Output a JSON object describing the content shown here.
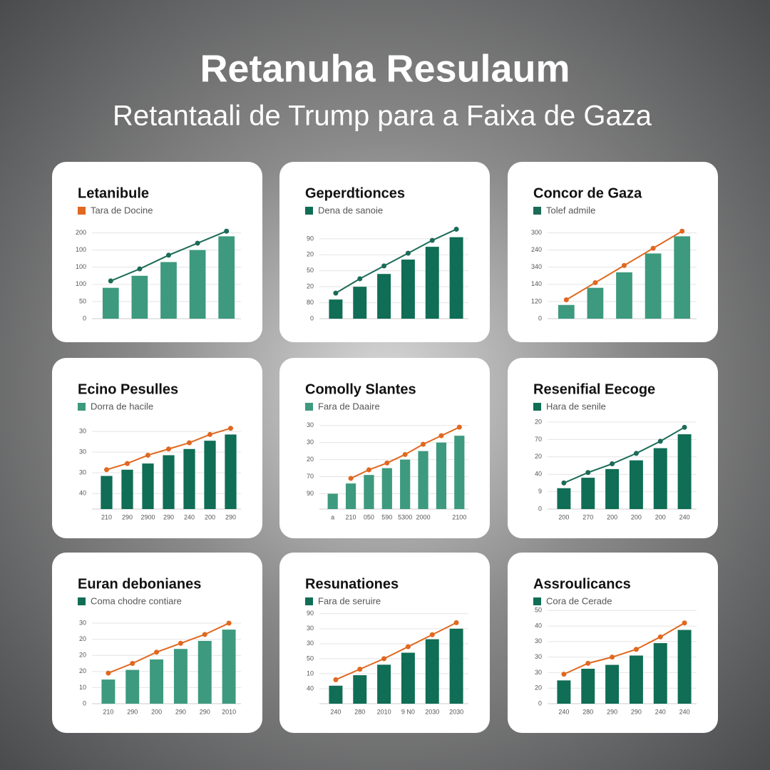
{
  "header": {
    "title": "Retanuha Resulaum",
    "subtitle": "Retantaali de Trump para a Faixa de Gaza"
  },
  "chart_data": [
    {
      "type": "combo",
      "title": "Letanibule",
      "legend_color": "#e0681f",
      "ylim": [
        0,
        5.4
      ],
      "yticks": [
        0,
        {
          "value": 1,
          "label": "50"
        },
        {
          "value": 2,
          "label": "100"
        },
        {
          "value": 3,
          "label": "100"
        },
        {
          "value": 4,
          "label": "100"
        },
        {
          "value": 5,
          "label": "200"
        }
      ],
      "series": [
        {
          "name": "Tara de Docine",
          "kind": "bar",
          "color": "#3d9a7e",
          "values": [
            1.8,
            2.5,
            3.3,
            4.0,
            4.8
          ]
        },
        {
          "kind": "line",
          "color": "#1b6b57",
          "values": [
            2.2,
            2.9,
            3.7,
            4.4,
            5.1
          ]
        }
      ]
    },
    {
      "type": "combo",
      "title": "Geperdtionces",
      "legend_color": "#0f6e55",
      "ylim": [
        0,
        5.8
      ],
      "yticks": [
        0,
        {
          "value": 1,
          "label": "80"
        },
        {
          "value": 2,
          "label": "20"
        },
        {
          "value": 3,
          "label": "50"
        },
        {
          "value": 4,
          "label": "20"
        },
        {
          "value": 5,
          "label": "90"
        }
      ],
      "series": [
        {
          "name": "Dena de sanoie",
          "kind": "bar",
          "color": "#0f6e55",
          "values": [
            1.2,
            2.0,
            2.8,
            3.7,
            4.5,
            5.1
          ]
        },
        {
          "kind": "line",
          "color": "#1b6b57",
          "values": [
            1.6,
            2.5,
            3.3,
            4.1,
            4.9,
            5.6
          ]
        }
      ]
    },
    {
      "type": "combo",
      "title": "Concor de Gaza",
      "legend_color": "#1b6b57",
      "ylim": [
        0,
        5.4
      ],
      "yticks": [
        0,
        {
          "value": 1,
          "label": "120"
        },
        {
          "value": 2,
          "label": "140"
        },
        {
          "value": 3,
          "label": "340"
        },
        {
          "value": 4,
          "label": "240"
        },
        {
          "value": 5,
          "label": "300"
        }
      ],
      "series": [
        {
          "name": "Tolef admile",
          "kind": "bar",
          "color": "#3d9a7e",
          "values": [
            0.8,
            1.8,
            2.7,
            3.8,
            4.8
          ]
        },
        {
          "kind": "line",
          "color": "#e0681f",
          "values": [
            1.1,
            2.1,
            3.1,
            4.1,
            5.1
          ]
        }
      ]
    },
    {
      "type": "combo",
      "title": "Ecino Pesulles",
      "legend_color": "#3d9a7e",
      "ylim": [
        0,
        4.2
      ],
      "yticks": [
        {
          "value": 0.75,
          "label": "40"
        },
        {
          "value": 1.75,
          "label": "30"
        },
        {
          "value": 2.75,
          "label": "30"
        },
        {
          "value": 3.75,
          "label": "30"
        }
      ],
      "categories": [
        "210",
        "290",
        "2900",
        "290",
        "240",
        "200",
        "290"
      ],
      "series": [
        {
          "name": "Dorra de hacile",
          "kind": "bar",
          "color": "#0f6e55",
          "values": [
            1.6,
            1.9,
            2.2,
            2.6,
            2.9,
            3.3,
            3.6
          ]
        },
        {
          "kind": "line",
          "color": "#e0681f",
          "values": [
            1.9,
            2.2,
            2.6,
            2.9,
            3.2,
            3.6,
            3.9
          ]
        }
      ]
    },
    {
      "type": "combo",
      "title": "Comolly Slantes",
      "legend_color": "#3d9a7e",
      "ylim": [
        0,
        5.1
      ],
      "yticks": [
        {
          "value": 0.9,
          "label": "90"
        },
        {
          "value": 1.9,
          "label": "70"
        },
        {
          "value": 2.9,
          "label": "20"
        },
        {
          "value": 3.9,
          "label": "30"
        },
        {
          "value": 4.9,
          "label": "30"
        }
      ],
      "categories": [
        "a",
        "210",
        "050",
        "590",
        "5300",
        "2000",
        null,
        "2100"
      ],
      "series": [
        {
          "name": "Fara de Daaire",
          "kind": "bar",
          "color": "#3d9a7e",
          "values": [
            0.9,
            1.5,
            2.0,
            2.4,
            2.9,
            3.4,
            3.9,
            4.3
          ]
        },
        {
          "kind": "line",
          "color": "#e0681f",
          "values": [
            null,
            1.8,
            2.3,
            2.7,
            3.2,
            3.8,
            4.3,
            4.8
          ]
        }
      ]
    },
    {
      "type": "combo",
      "title": "Resenifial Eecoge",
      "legend_color": "#0f6e55",
      "ylim": [
        0,
        5.0
      ],
      "yticks": [
        0,
        {
          "value": 1,
          "label": "9"
        },
        {
          "value": 2,
          "label": "40"
        },
        {
          "value": 3,
          "label": "20"
        },
        {
          "value": 4,
          "label": "70"
        },
        {
          "value": 5,
          "label": "20"
        }
      ],
      "categories": [
        "200",
        "270",
        "200",
        "200",
        "200",
        "240"
      ],
      "series": [
        {
          "name": "Hara de senile",
          "kind": "bar",
          "color": "#0f6e55",
          "values": [
            1.2,
            1.8,
            2.3,
            2.8,
            3.5,
            4.3
          ]
        },
        {
          "kind": "line",
          "color": "#1b6b57",
          "values": [
            1.5,
            2.1,
            2.6,
            3.2,
            3.9,
            4.7
          ]
        }
      ]
    },
    {
      "type": "combo",
      "title": "Euran debonianes",
      "legend_color": "#0f6e55",
      "ylim": [
        0,
        5.4
      ],
      "yticks": [
        0,
        {
          "value": 1,
          "label": "10"
        },
        {
          "value": 2,
          "label": "20"
        },
        {
          "value": 3,
          "label": "20"
        },
        {
          "value": 4,
          "label": "20"
        },
        {
          "value": 5,
          "label": "30"
        }
      ],
      "categories": [
        "210",
        "290",
        "200",
        "290",
        "290",
        "2010"
      ],
      "series": [
        {
          "name": "Coma chodre contiare",
          "kind": "bar",
          "color": "#3d9a7e",
          "values": [
            1.5,
            2.1,
            2.75,
            3.4,
            3.9,
            4.6
          ]
        },
        {
          "kind": "line",
          "color": "#e0681f",
          "values": [
            1.9,
            2.5,
            3.2,
            3.75,
            4.3,
            5.0
          ]
        }
      ]
    },
    {
      "type": "combo",
      "title": "Resunationes",
      "legend_color": "#0f6e55",
      "ylim": [
        0,
        5.8
      ],
      "yticks": [
        {
          "value": 1,
          "label": "40"
        },
        {
          "value": 2,
          "label": "10"
        },
        {
          "value": 3,
          "label": "50"
        },
        {
          "value": 4,
          "label": "30"
        },
        {
          "value": 5,
          "label": "30"
        },
        {
          "value": 6,
          "label": "90"
        }
      ],
      "categories": [
        "240",
        "280",
        "2010",
        "9 N0",
        "2030",
        "2030"
      ],
      "series": [
        {
          "name": "Fara de seruire",
          "kind": "bar",
          "color": "#0f6e55",
          "values": [
            1.2,
            1.9,
            2.6,
            3.4,
            4.3,
            5.0
          ]
        },
        {
          "kind": "line",
          "color": "#e0681f",
          "values": [
            1.6,
            2.3,
            3.0,
            3.8,
            4.6,
            5.4
          ]
        }
      ]
    },
    {
      "type": "combo",
      "title": "Assroulicancs",
      "legend_color": "#0f6e55",
      "ylim": [
        0,
        5.6
      ],
      "yticks": [
        0,
        {
          "value": 1,
          "label": "20"
        },
        {
          "value": 2,
          "label": "30"
        },
        {
          "value": 3,
          "label": "30"
        },
        {
          "value": 4,
          "label": "30"
        },
        {
          "value": 5,
          "label": "40"
        },
        {
          "value": 6,
          "label": "50"
        }
      ],
      "categories": [
        "240",
        "280",
        "290",
        "290",
        "240",
        "240"
      ],
      "series": [
        {
          "name": "Cora de Cerade",
          "kind": "bar",
          "color": "#0f6e55",
          "values": [
            1.5,
            2.25,
            2.5,
            3.1,
            3.9,
            4.75
          ]
        },
        {
          "kind": "line",
          "color": "#e0681f",
          "values": [
            1.9,
            2.6,
            3.0,
            3.5,
            4.3,
            5.2
          ]
        }
      ]
    }
  ]
}
